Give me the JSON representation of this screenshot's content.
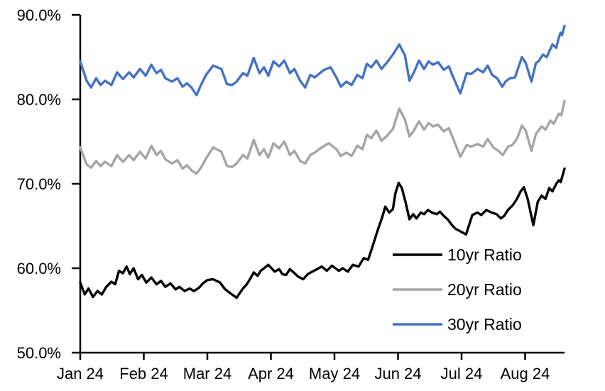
{
  "colors": {
    "background": "#FFFFFF",
    "axis": "#000000",
    "text": "#000000"
  },
  "chart_data": {
    "type": "line",
    "title": "",
    "xlabel": "",
    "ylabel": "",
    "grid": false,
    "x_axis": {
      "unit": "months since Jan 2024",
      "range_months": [
        0,
        7.62
      ],
      "tick_labels": [
        "Jan 24",
        "Feb 24",
        "Mar 24",
        "Apr 24",
        "May 24",
        "Jun 24",
        "Jul 24",
        "Aug 24"
      ]
    },
    "y_axis": {
      "min": 50,
      "max": 90,
      "tick_values": [
        50,
        60,
        70,
        80,
        90
      ],
      "tick_labels": [
        "50.0%",
        "60.0%",
        "70.0%",
        "80.0%",
        "90.0%"
      ]
    },
    "legend": {
      "position": "inside-lower-right",
      "entries": [
        "10yr Ratio",
        "20yr Ratio",
        "30yr Ratio"
      ]
    },
    "series": [
      {
        "name": "10yr Ratio",
        "color": "#000000",
        "points": [
          [
            0,
            58.3
          ],
          [
            0.07,
            56.9
          ],
          [
            0.13,
            57.6
          ],
          [
            0.2,
            56.6
          ],
          [
            0.27,
            57.3
          ],
          [
            0.34,
            56.9
          ],
          [
            0.41,
            57.8
          ],
          [
            0.49,
            58.4
          ],
          [
            0.55,
            58.1
          ],
          [
            0.61,
            59.7
          ],
          [
            0.67,
            59.4
          ],
          [
            0.73,
            60.2
          ],
          [
            0.78,
            59.3
          ],
          [
            0.84,
            60.0
          ],
          [
            0.91,
            58.7
          ],
          [
            0.97,
            59.2
          ],
          [
            1.04,
            58.3
          ],
          [
            1.12,
            58.9
          ],
          [
            1.2,
            58.1
          ],
          [
            1.27,
            58.5
          ],
          [
            1.34,
            57.8
          ],
          [
            1.42,
            58.2
          ],
          [
            1.5,
            57.5
          ],
          [
            1.56,
            57.8
          ],
          [
            1.64,
            57.3
          ],
          [
            1.72,
            57.6
          ],
          [
            1.79,
            57.3
          ],
          [
            1.87,
            57.7
          ],
          [
            1.93,
            58.2
          ],
          [
            2.0,
            58.6
          ],
          [
            2.09,
            58.7
          ],
          [
            2.2,
            58.3
          ],
          [
            2.28,
            57.5
          ],
          [
            2.37,
            57.0
          ],
          [
            2.46,
            56.5
          ],
          [
            2.56,
            57.6
          ],
          [
            2.61,
            58.0
          ],
          [
            2.67,
            58.7
          ],
          [
            2.73,
            59.5
          ],
          [
            2.79,
            59.1
          ],
          [
            2.84,
            59.7
          ],
          [
            2.96,
            60.4
          ],
          [
            3.06,
            59.6
          ],
          [
            3.13,
            59.9
          ],
          [
            3.18,
            59.3
          ],
          [
            3.24,
            59.2
          ],
          [
            3.3,
            59.9
          ],
          [
            3.43,
            59.0
          ],
          [
            3.51,
            58.7
          ],
          [
            3.58,
            59.3
          ],
          [
            3.65,
            59.6
          ],
          [
            3.73,
            59.9
          ],
          [
            3.8,
            60.2
          ],
          [
            3.88,
            59.7
          ],
          [
            3.96,
            60.3
          ],
          [
            4.07,
            59.7
          ],
          [
            4.13,
            60.0
          ],
          [
            4.21,
            59.6
          ],
          [
            4.29,
            60.4
          ],
          [
            4.38,
            60.2
          ],
          [
            4.46,
            61.2
          ],
          [
            4.53,
            61.0
          ],
          [
            4.6,
            62.6
          ],
          [
            4.68,
            64.5
          ],
          [
            4.75,
            66.0
          ],
          [
            4.8,
            67.3
          ],
          [
            4.86,
            66.6
          ],
          [
            4.92,
            67.0
          ],
          [
            4.96,
            68.9
          ],
          [
            5.01,
            70.1
          ],
          [
            5.06,
            69.5
          ],
          [
            5.12,
            67.8
          ],
          [
            5.18,
            65.8
          ],
          [
            5.24,
            66.4
          ],
          [
            5.29,
            65.9
          ],
          [
            5.36,
            66.6
          ],
          [
            5.41,
            66.4
          ],
          [
            5.47,
            66.9
          ],
          [
            5.53,
            66.6
          ],
          [
            5.61,
            66.4
          ],
          [
            5.66,
            66.7
          ],
          [
            5.72,
            66.2
          ],
          [
            5.78,
            65.8
          ],
          [
            5.84,
            65.2
          ],
          [
            5.9,
            64.7
          ],
          [
            6.07,
            64.0
          ],
          [
            6.17,
            66.3
          ],
          [
            6.25,
            66.6
          ],
          [
            6.31,
            66.3
          ],
          [
            6.39,
            66.9
          ],
          [
            6.47,
            66.6
          ],
          [
            6.55,
            66.4
          ],
          [
            6.62,
            65.9
          ],
          [
            6.67,
            66.2
          ],
          [
            6.73,
            66.9
          ],
          [
            6.8,
            67.4
          ],
          [
            6.87,
            68.2
          ],
          [
            6.93,
            69.1
          ],
          [
            6.98,
            69.6
          ],
          [
            7.04,
            68.2
          ],
          [
            7.13,
            65.1
          ],
          [
            7.2,
            67.9
          ],
          [
            7.26,
            68.6
          ],
          [
            7.32,
            68.2
          ],
          [
            7.38,
            69.5
          ],
          [
            7.43,
            69.1
          ],
          [
            7.49,
            70.0
          ],
          [
            7.53,
            70.4
          ],
          [
            7.56,
            70.2
          ],
          [
            7.62,
            71.8
          ]
        ]
      },
      {
        "name": "20yr Ratio",
        "color": "#A5A5A5",
        "points": [
          [
            0,
            74.3
          ],
          [
            0.1,
            72.3
          ],
          [
            0.17,
            71.9
          ],
          [
            0.25,
            72.7
          ],
          [
            0.32,
            72.1
          ],
          [
            0.39,
            72.6
          ],
          [
            0.49,
            72.1
          ],
          [
            0.58,
            73.4
          ],
          [
            0.67,
            72.6
          ],
          [
            0.77,
            73.4
          ],
          [
            0.84,
            72.8
          ],
          [
            0.94,
            73.8
          ],
          [
            1.03,
            73.0
          ],
          [
            1.12,
            74.5
          ],
          [
            1.2,
            73.4
          ],
          [
            1.27,
            73.9
          ],
          [
            1.34,
            72.9
          ],
          [
            1.44,
            72.4
          ],
          [
            1.53,
            72.8
          ],
          [
            1.61,
            71.8
          ],
          [
            1.68,
            72.2
          ],
          [
            1.75,
            71.6
          ],
          [
            1.83,
            71.2
          ],
          [
            1.9,
            71.9
          ],
          [
            1.98,
            73.0
          ],
          [
            2.09,
            74.3
          ],
          [
            2.22,
            73.8
          ],
          [
            2.31,
            72.1
          ],
          [
            2.39,
            72.0
          ],
          [
            2.46,
            72.4
          ],
          [
            2.56,
            73.4
          ],
          [
            2.63,
            73.0
          ],
          [
            2.73,
            75.2
          ],
          [
            2.82,
            73.4
          ],
          [
            2.89,
            74.1
          ],
          [
            2.96,
            73.1
          ],
          [
            3.04,
            74.8
          ],
          [
            3.13,
            74.2
          ],
          [
            3.21,
            75.0
          ],
          [
            3.3,
            73.4
          ],
          [
            3.37,
            73.9
          ],
          [
            3.46,
            72.7
          ],
          [
            3.54,
            72.4
          ],
          [
            3.62,
            73.4
          ],
          [
            3.69,
            73.7
          ],
          [
            3.76,
            74.1
          ],
          [
            3.84,
            74.5
          ],
          [
            3.91,
            74.8
          ],
          [
            4.03,
            74.1
          ],
          [
            4.1,
            73.3
          ],
          [
            4.19,
            73.7
          ],
          [
            4.27,
            73.3
          ],
          [
            4.36,
            74.5
          ],
          [
            4.44,
            74.1
          ],
          [
            4.51,
            75.8
          ],
          [
            4.58,
            75.4
          ],
          [
            4.66,
            76.3
          ],
          [
            4.74,
            75.1
          ],
          [
            4.83,
            75.7
          ],
          [
            4.92,
            76.5
          ],
          [
            5.02,
            78.9
          ],
          [
            5.11,
            77.6
          ],
          [
            5.18,
            75.6
          ],
          [
            5.25,
            76.3
          ],
          [
            5.33,
            77.4
          ],
          [
            5.41,
            76.4
          ],
          [
            5.48,
            77.2
          ],
          [
            5.55,
            76.8
          ],
          [
            5.63,
            77.0
          ],
          [
            5.72,
            76.2
          ],
          [
            5.8,
            76.6
          ],
          [
            5.87,
            75.3
          ],
          [
            5.98,
            73.2
          ],
          [
            6.08,
            74.6
          ],
          [
            6.15,
            74.4
          ],
          [
            6.25,
            74.7
          ],
          [
            6.34,
            74.4
          ],
          [
            6.41,
            75.3
          ],
          [
            6.5,
            74.3
          ],
          [
            6.58,
            73.9
          ],
          [
            6.65,
            73.4
          ],
          [
            6.73,
            74.4
          ],
          [
            6.8,
            74.6
          ],
          [
            6.87,
            75.3
          ],
          [
            6.95,
            76.9
          ],
          [
            7.01,
            76.3
          ],
          [
            7.1,
            73.9
          ],
          [
            7.17,
            75.9
          ],
          [
            7.26,
            76.8
          ],
          [
            7.32,
            76.4
          ],
          [
            7.4,
            77.5
          ],
          [
            7.45,
            77.1
          ],
          [
            7.53,
            78.3
          ],
          [
            7.57,
            78.1
          ],
          [
            7.62,
            79.8
          ]
        ]
      },
      {
        "name": "30yr Ratio",
        "color": "#4472C4",
        "points": [
          [
            0,
            84.5
          ],
          [
            0.1,
            82.2
          ],
          [
            0.17,
            81.4
          ],
          [
            0.25,
            82.5
          ],
          [
            0.32,
            81.7
          ],
          [
            0.39,
            82.2
          ],
          [
            0.49,
            81.7
          ],
          [
            0.58,
            83.2
          ],
          [
            0.67,
            82.4
          ],
          [
            0.77,
            83.2
          ],
          [
            0.84,
            82.6
          ],
          [
            0.94,
            83.6
          ],
          [
            1.03,
            82.8
          ],
          [
            1.12,
            84.1
          ],
          [
            1.2,
            83.1
          ],
          [
            1.27,
            83.5
          ],
          [
            1.34,
            82.5
          ],
          [
            1.44,
            82.1
          ],
          [
            1.53,
            82.5
          ],
          [
            1.61,
            81.5
          ],
          [
            1.68,
            81.9
          ],
          [
            1.75,
            81.4
          ],
          [
            1.83,
            80.5
          ],
          [
            1.9,
            81.7
          ],
          [
            1.98,
            82.9
          ],
          [
            2.09,
            84.0
          ],
          [
            2.22,
            83.6
          ],
          [
            2.31,
            81.8
          ],
          [
            2.39,
            81.7
          ],
          [
            2.46,
            82.1
          ],
          [
            2.56,
            83.1
          ],
          [
            2.63,
            82.8
          ],
          [
            2.73,
            84.9
          ],
          [
            2.82,
            83.1
          ],
          [
            2.89,
            83.8
          ],
          [
            2.96,
            82.8
          ],
          [
            3.04,
            84.5
          ],
          [
            3.13,
            83.9
          ],
          [
            3.21,
            84.6
          ],
          [
            3.3,
            83.1
          ],
          [
            3.37,
            83.6
          ],
          [
            3.46,
            82.2
          ],
          [
            3.54,
            81.4
          ],
          [
            3.62,
            82.9
          ],
          [
            3.69,
            82.6
          ],
          [
            3.77,
            83.1
          ],
          [
            3.84,
            83.5
          ],
          [
            3.94,
            83.8
          ],
          [
            4.03,
            82.6
          ],
          [
            4.1,
            81.5
          ],
          [
            4.19,
            82.1
          ],
          [
            4.27,
            81.7
          ],
          [
            4.36,
            82.9
          ],
          [
            4.44,
            82.5
          ],
          [
            4.51,
            84.2
          ],
          [
            4.58,
            83.8
          ],
          [
            4.66,
            84.6
          ],
          [
            4.74,
            83.6
          ],
          [
            4.83,
            84.4
          ],
          [
            4.92,
            85.3
          ],
          [
            5.02,
            86.5
          ],
          [
            5.11,
            85.2
          ],
          [
            5.18,
            82.2
          ],
          [
            5.25,
            83.2
          ],
          [
            5.33,
            84.6
          ],
          [
            5.41,
            83.6
          ],
          [
            5.48,
            84.5
          ],
          [
            5.55,
            84.1
          ],
          [
            5.63,
            84.4
          ],
          [
            5.72,
            83.5
          ],
          [
            5.8,
            83.9
          ],
          [
            5.87,
            82.6
          ],
          [
            5.98,
            80.7
          ],
          [
            6.08,
            83.1
          ],
          [
            6.15,
            83.0
          ],
          [
            6.25,
            83.6
          ],
          [
            6.34,
            83.2
          ],
          [
            6.41,
            84.0
          ],
          [
            6.48,
            82.9
          ],
          [
            6.56,
            82.5
          ],
          [
            6.64,
            81.5
          ],
          [
            6.69,
            82.1
          ],
          [
            6.76,
            82.5
          ],
          [
            6.84,
            82.6
          ],
          [
            6.95,
            85.0
          ],
          [
            7.01,
            84.3
          ],
          [
            7.1,
            82.1
          ],
          [
            7.17,
            84.3
          ],
          [
            7.21,
            84.5
          ],
          [
            7.28,
            85.3
          ],
          [
            7.34,
            85.0
          ],
          [
            7.43,
            86.5
          ],
          [
            7.49,
            86.1
          ],
          [
            7.53,
            87.3
          ],
          [
            7.56,
            87.9
          ],
          [
            7.58,
            87.6
          ],
          [
            7.62,
            88.7
          ]
        ]
      }
    ]
  }
}
